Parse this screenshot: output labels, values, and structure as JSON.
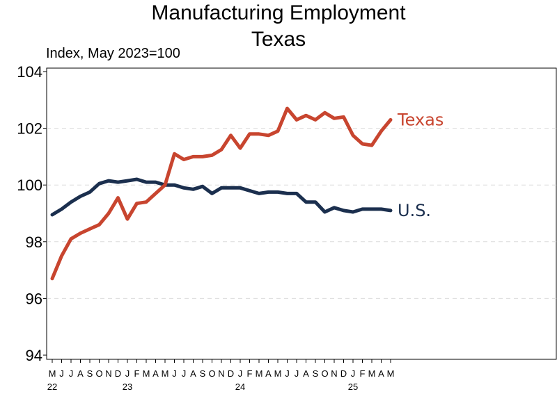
{
  "chart_data": {
    "type": "line",
    "title": "Manufacturing Employment",
    "subtitle": "Texas",
    "ylabel": "Index, May 2023=100",
    "ylim": [
      94,
      104
    ],
    "yticks": [
      94,
      96,
      98,
      100,
      102,
      104
    ],
    "grid": true,
    "x_tick_labels": [
      "M",
      "J",
      "J",
      "A",
      "S",
      "O",
      "N",
      "D",
      "J",
      "F",
      "M",
      "A",
      "M",
      "J",
      "J",
      "A",
      "S",
      "O",
      "N",
      "D",
      "J",
      "F",
      "M",
      "A",
      "M",
      "J",
      "J",
      "A",
      "S",
      "O",
      "N",
      "D",
      "J",
      "F",
      "M",
      "A",
      "M"
    ],
    "year_labels": [
      {
        "label": "22",
        "index": 0
      },
      {
        "label": "23",
        "index": 8
      },
      {
        "label": "24",
        "index": 20
      },
      {
        "label": "25",
        "index": 32
      }
    ],
    "x_months": [
      "2022-05",
      "2022-06",
      "2022-07",
      "2022-08",
      "2022-09",
      "2022-10",
      "2022-11",
      "2022-12",
      "2023-01",
      "2023-02",
      "2023-03",
      "2023-04",
      "2023-05",
      "2023-06",
      "2023-07",
      "2023-08",
      "2023-09",
      "2023-10",
      "2023-11",
      "2023-12",
      "2024-01",
      "2024-02",
      "2024-03",
      "2024-04",
      "2024-05",
      "2024-06",
      "2024-07",
      "2024-08",
      "2024-09",
      "2024-10",
      "2024-11",
      "2024-12",
      "2025-01",
      "2025-02",
      "2025-03",
      "2025-04",
      "2025-05"
    ],
    "series": [
      {
        "name": "Texas",
        "color": "#c8452f",
        "values": [
          96.7,
          97.5,
          98.1,
          98.3,
          98.45,
          98.6,
          99.0,
          99.55,
          98.8,
          99.35,
          99.4,
          99.7,
          100.0,
          101.1,
          100.9,
          101.0,
          101.0,
          101.05,
          101.25,
          101.75,
          101.3,
          101.8,
          101.8,
          101.75,
          101.9,
          102.7,
          102.3,
          102.45,
          102.3,
          102.55,
          102.35,
          102.4,
          101.75,
          101.45,
          101.4,
          101.9,
          102.3
        ]
      },
      {
        "name": "U.S.",
        "color": "#1b2f4e",
        "values": [
          98.95,
          99.15,
          99.4,
          99.6,
          99.75,
          100.05,
          100.15,
          100.1,
          100.15,
          100.2,
          100.1,
          100.1,
          100.0,
          100.0,
          99.9,
          99.85,
          99.95,
          99.7,
          99.9,
          99.9,
          99.9,
          99.8,
          99.7,
          99.75,
          99.75,
          99.7,
          99.7,
          99.4,
          99.4,
          99.05,
          99.2,
          99.1,
          99.05,
          99.15,
          99.15,
          99.15,
          99.1
        ]
      }
    ]
  }
}
